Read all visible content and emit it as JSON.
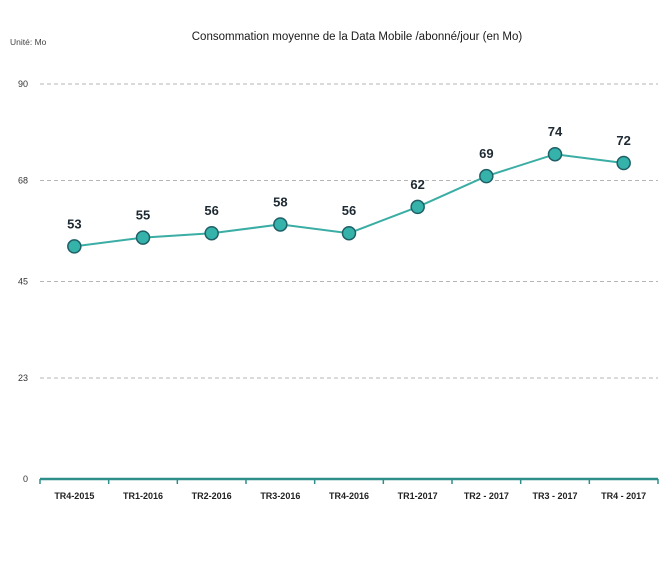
{
  "chart_data": {
    "type": "line",
    "title": "Consommation moyenne de la Data Mobile /abonné/jour (en Mo)",
    "unit_label": "Unité: Mo",
    "categories": [
      "TR4-2015",
      "TR1-2016",
      "TR2-2016",
      "TR3-2016",
      "TR4-2016",
      "TR1-2017",
      "TR2 - 2017",
      "TR3 - 2017",
      "TR4 - 2017"
    ],
    "series": [
      {
        "values": [
          53,
          55,
          56,
          58,
          56,
          62,
          69,
          74,
          72
        ]
      }
    ],
    "y_ticks": [
      "0",
      "23",
      "45",
      "68",
      "90"
    ],
    "ylim": [
      0,
      90
    ],
    "grid": true,
    "legend": "none",
    "colors": {
      "line": "#3aada5",
      "marker_fill": "#35b3ab",
      "marker_stroke": "#1f5f66",
      "axis": "#2e8f8a"
    }
  }
}
